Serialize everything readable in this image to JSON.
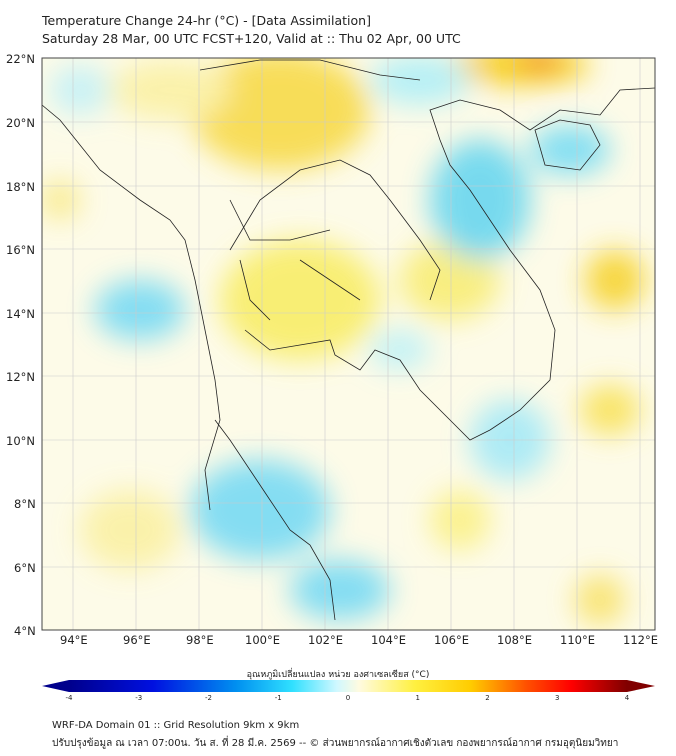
{
  "header": {
    "title": "Temperature Change 24-hr (°C) - [Data Assimilation]",
    "subtitle": "Saturday 28 Mar, 00 UTC FCST+120, Valid at :: Thu 02 Apr, 00 UTC"
  },
  "map": {
    "lat_labels": [
      "22°N",
      "20°N",
      "18°N",
      "16°N",
      "14°N",
      "12°N",
      "10°N",
      "8°N",
      "6°N",
      "4°N"
    ],
    "lon_labels": [
      "94°E",
      "96°E",
      "98°E",
      "100°E",
      "102°E",
      "104°E",
      "106°E",
      "108°E",
      "110°E",
      "112°E"
    ],
    "colors": {
      "cold": "#33ccf0",
      "warm": "#f5d800",
      "hot": "#f07000",
      "neutral": "#ffffff"
    }
  },
  "colorbar": {
    "label": "อุณหภูมิเปลี่ยนแปลง หน่วย องศาเซลเซียส (°C)",
    "ticks": [
      "-4",
      "-3",
      "-2",
      "-1",
      "0",
      "1",
      "2",
      "3",
      "4"
    ],
    "range": [
      -4,
      4
    ]
  },
  "footer": {
    "line1": "WRF-DA Domain 01 :: Grid Resolution 9km x 9km",
    "line2": "ปรับปรุงข้อมูล ณ เวลา 07:00น. วัน ส. ที่ 28 มี.ค. 2569 -- © ส่วนพยากรณ์อากาศเชิงตัวเลข กองพยากรณ์อากาศ กรมอุตุนิยมวิทยา"
  }
}
